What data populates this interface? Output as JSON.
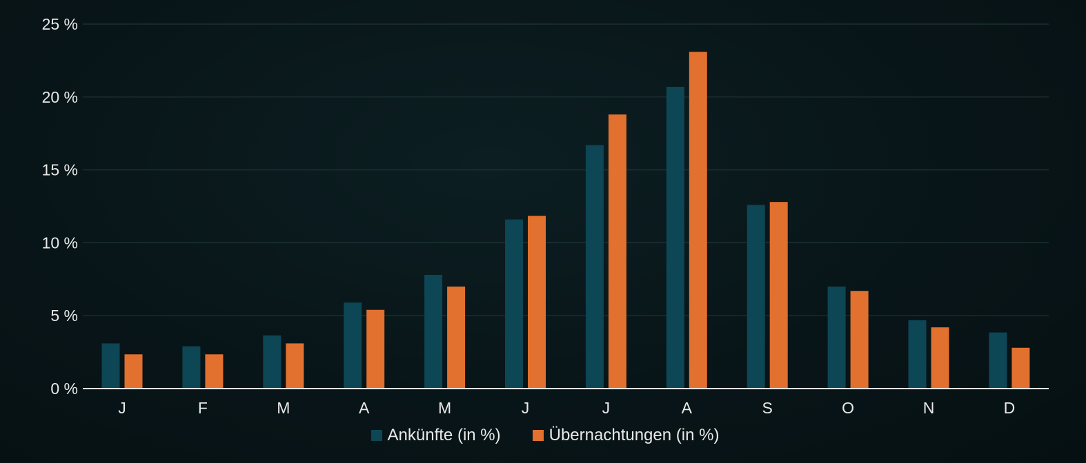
{
  "colors": {
    "background": "#081518",
    "arrivals": "#0d4655",
    "overnight": "#e2702f",
    "grid": "#203538",
    "axis": "#e6e6e6",
    "text": "#e9e9e9"
  },
  "chart_data": {
    "type": "bar",
    "categories": [
      "J",
      "F",
      "M",
      "A",
      "M",
      "J",
      "J",
      "A",
      "S",
      "O",
      "N",
      "D"
    ],
    "series": [
      {
        "name": "Ankünfte (in %)",
        "color": "#0d4655",
        "values": [
          3.1,
          2.9,
          3.65,
          5.9,
          7.8,
          11.6,
          16.7,
          20.7,
          12.6,
          7.0,
          4.7,
          3.85
        ]
      },
      {
        "name": "Übernachtungen (in %)",
        "color": "#e2702f",
        "values": [
          2.35,
          2.35,
          3.1,
          5.4,
          7.0,
          11.85,
          18.8,
          23.1,
          12.8,
          6.7,
          4.2,
          2.8
        ]
      }
    ],
    "yticks": [
      "0 %",
      "5 %",
      "10 %",
      "15 %",
      "20 %",
      "25 %"
    ],
    "ylim": [
      0,
      25
    ],
    "grid": true,
    "legend_position": "bottom-center"
  }
}
